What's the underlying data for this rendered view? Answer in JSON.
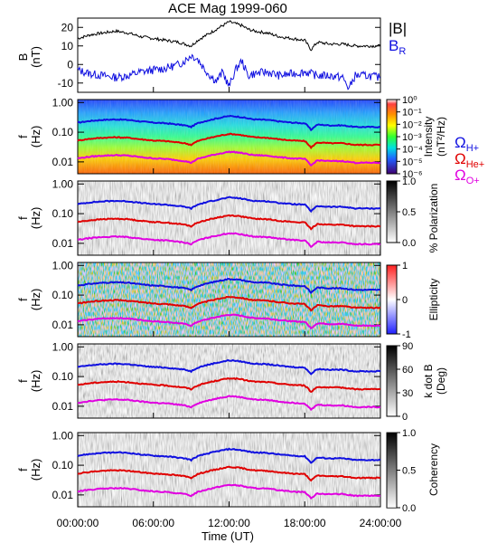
{
  "title": "ACE Mag 1999-060",
  "colors": {
    "b_total": "#000000",
    "b_r": "#1010e0",
    "h_plus": "#1010e0",
    "he_plus": "#e00000",
    "o_plus": "#e000e0"
  },
  "chart_data": [
    {
      "type": "line",
      "panel": "magnetic-field",
      "ylabel": "B (nT)",
      "ylabel_line1": "B",
      "ylabel_line2": "(nT)",
      "ylim": [
        -15,
        25
      ],
      "yticks": [
        -10,
        0,
        10,
        20
      ],
      "ytick_labels": [
        "-10",
        "0",
        "10",
        "20"
      ],
      "xlim": [
        0,
        24
      ],
      "series": [
        {
          "name": "|B|",
          "x": [
            0,
            1,
            2,
            3,
            4,
            5,
            6,
            7,
            8,
            8.5,
            9,
            9.5,
            10,
            10.5,
            11,
            11.5,
            12,
            12.5,
            13,
            13.5,
            14,
            15,
            16,
            17,
            18,
            18.5,
            19,
            20,
            21,
            22,
            23,
            24
          ],
          "y": [
            14,
            16,
            17,
            18,
            17,
            15,
            14,
            13,
            12,
            11,
            10,
            13,
            15,
            17,
            19,
            21,
            23,
            22,
            21,
            19,
            18,
            17,
            15,
            14,
            13,
            8,
            12,
            11,
            11,
            10,
            10,
            10
          ]
        },
        {
          "name": "B_R",
          "x": [
            0,
            1,
            2,
            3,
            4,
            5,
            6,
            7,
            8,
            8.5,
            9,
            9.5,
            10,
            10.5,
            11,
            11.5,
            12,
            12.5,
            13,
            13.5,
            14,
            15,
            16,
            17,
            18,
            19,
            20,
            21,
            21.5,
            22,
            23,
            24
          ],
          "y": [
            -3,
            -5,
            -6,
            -7,
            -6,
            -4,
            -3,
            -2,
            0,
            2,
            5,
            3,
            -2,
            -6,
            -9,
            -4,
            -12,
            -3,
            2,
            -6,
            -5,
            -4,
            -6,
            -5,
            -4,
            -6,
            -6,
            -7,
            -13,
            -6,
            -6,
            -7
          ]
        }
      ]
    },
    {
      "type": "heatmap",
      "panel": "intensity",
      "ylabel_line1": "f",
      "ylabel_line2": "(Hz)",
      "ytick_labels": [
        "0.01",
        "0.10",
        "1.00"
      ],
      "colorbar_label": "Intensity",
      "colorbar_unit": "(nT²/Hz)",
      "colorbar_ticks": [
        "10⁰",
        "10⁻¹",
        "10⁻²",
        "10⁻³",
        "10⁻⁴",
        "10⁻⁵",
        "10⁻⁶"
      ],
      "colorbar_range_log10": [
        -6,
        0
      ]
    },
    {
      "type": "heatmap",
      "panel": "polarization",
      "ylabel_line1": "f",
      "ylabel_line2": "(Hz)",
      "ytick_labels": [
        "0.01",
        "0.10",
        "1.00"
      ],
      "colorbar_label": "% Polarization",
      "colorbar_ticks": [
        "1.0",
        "0.5",
        "0.0"
      ],
      "colorbar_range": [
        0,
        1
      ]
    },
    {
      "type": "heatmap",
      "panel": "ellipticity",
      "ylabel_line1": "f",
      "ylabel_line2": "(Hz)",
      "ytick_labels": [
        "0.01",
        "0.10",
        "1.00"
      ],
      "colorbar_label": "Ellipticity",
      "colorbar_ticks": [
        "1",
        "0",
        "-1"
      ],
      "colorbar_range": [
        -1,
        1
      ]
    },
    {
      "type": "heatmap",
      "panel": "k-dot-b",
      "ylabel_line1": "f",
      "ylabel_line2": "(Hz)",
      "ytick_labels": [
        "0.01",
        "0.10",
        "1.00"
      ],
      "colorbar_label": "k dot B",
      "colorbar_unit": "(Deg)",
      "colorbar_ticks": [
        "90",
        "60",
        "30",
        "0"
      ],
      "colorbar_range": [
        0,
        90
      ]
    },
    {
      "type": "heatmap",
      "panel": "coherency",
      "ylabel_line1": "f",
      "ylabel_line2": "(Hz)",
      "ytick_labels": [
        "0.01",
        "0.10",
        "1.00"
      ],
      "colorbar_label": "Coherency",
      "colorbar_ticks": [
        "1.0",
        "0.5",
        "0.0"
      ],
      "colorbar_range": [
        0,
        1
      ]
    }
  ],
  "gyrofrequency_lines": {
    "x": [
      0,
      1,
      2,
      3,
      4,
      5,
      6,
      7,
      8,
      8.5,
      9,
      9.5,
      10,
      10.5,
      11,
      11.5,
      12,
      12.5,
      13,
      13.5,
      14,
      15,
      16,
      17,
      18,
      18.5,
      19,
      20,
      21,
      22,
      23,
      24
    ],
    "h_plus_hz": [
      0.21,
      0.24,
      0.26,
      0.27,
      0.26,
      0.23,
      0.21,
      0.2,
      0.18,
      0.17,
      0.15,
      0.2,
      0.23,
      0.26,
      0.29,
      0.32,
      0.35,
      0.34,
      0.32,
      0.29,
      0.27,
      0.26,
      0.23,
      0.21,
      0.2,
      0.12,
      0.18,
      0.17,
      0.17,
      0.15,
      0.15,
      0.15
    ]
  },
  "legend": {
    "b_total": "|B|",
    "b_r_main": "B",
    "b_r_sub": "R",
    "omega": "Ω",
    "h_sub": "H+",
    "he_sub": "He+",
    "o_sub": "O+"
  },
  "x_axis": {
    "label": "Time (UT)",
    "tick_labels": [
      "00:00:00",
      "06:00:00",
      "12:00:00",
      "18:00:00",
      "24:00:00"
    ],
    "tick_hours": [
      0,
      6,
      12,
      18,
      24
    ]
  }
}
